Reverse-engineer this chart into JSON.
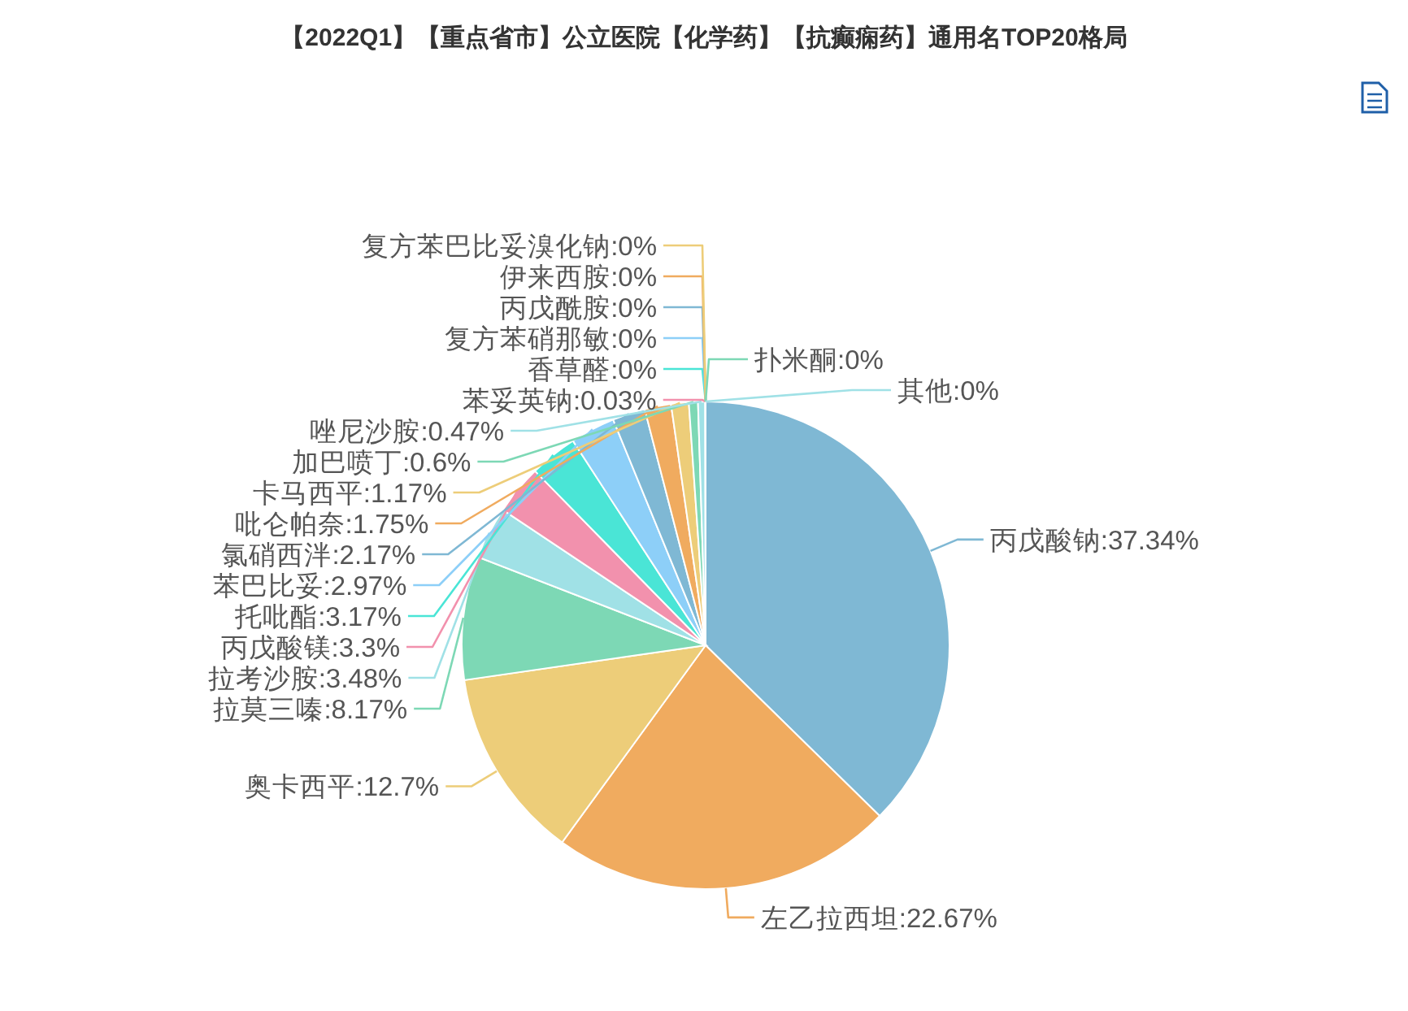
{
  "chart_data": {
    "type": "pie",
    "title": "【2022Q1】【重点省市】公立医院【化学药】【抗癫痫药】通用名TOP20格局",
    "categories": [
      "丙戊酸钠",
      "左乙拉西坦",
      "奥卡西平",
      "拉莫三嗪",
      "拉考沙胺",
      "丙戊酸镁",
      "托吡酯",
      "苯巴比妥",
      "氯硝西泮",
      "吡仑帕奈",
      "卡马西平",
      "加巴喷丁",
      "唑尼沙胺",
      "苯妥英钠",
      "香草醛",
      "复方苯硝那敏",
      "丙戊酰胺",
      "伊来西胺",
      "复方苯巴比妥溴化钠",
      "扑米酮",
      "其他"
    ],
    "values": [
      37.34,
      22.67,
      12.7,
      8.17,
      3.48,
      3.3,
      3.17,
      2.97,
      2.17,
      1.75,
      1.17,
      0.6,
      0.47,
      0.03,
      0,
      0,
      0,
      0,
      0,
      0,
      0
    ],
    "colors": [
      "#7fb8d4",
      "#f0ab5f",
      "#edcd79",
      "#7dd8b5",
      "#a0e1e6",
      "#f291ad",
      "#4ae5d6",
      "#8dcff8",
      "#7fb8d4",
      "#f0ab5f",
      "#edcd79",
      "#7dd8b5",
      "#a0e1e6",
      "#f291ad",
      "#4ae5d6",
      "#8dcff8",
      "#7fb8d4",
      "#f0ab5f",
      "#edcd79",
      "#7dd8b5",
      "#a0e1e6"
    ],
    "value_labels": [
      ":37.34%",
      ":22.67%",
      ":12.7%",
      ":8.17%",
      ":3.48%",
      ":3.3%",
      ":3.17%",
      ":2.97%",
      ":2.17%",
      ":1.75%",
      ":1.17%",
      ":0.6%",
      ":0.47%",
      ":0.03%",
      ":0%",
      ":0%",
      ":0%",
      ":0%",
      ":0%",
      ":0%",
      ":0%"
    ]
  }
}
